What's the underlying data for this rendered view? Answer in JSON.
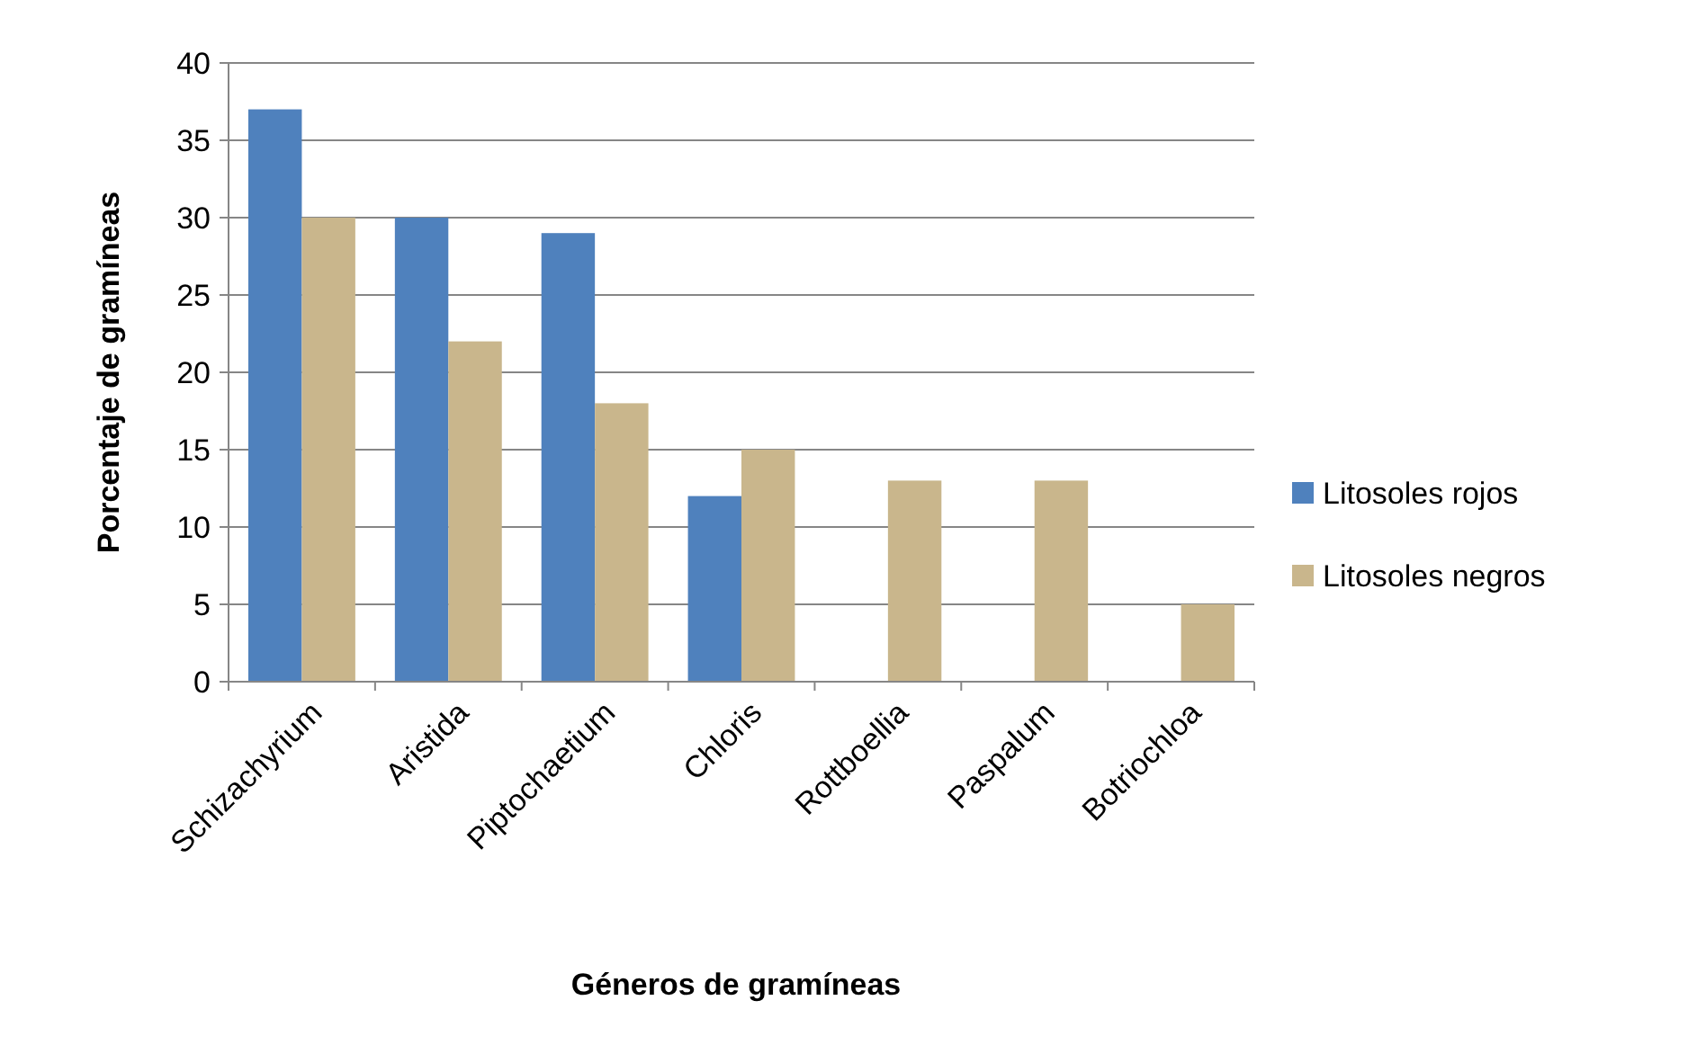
{
  "chart_data": {
    "type": "bar",
    "xlabel": "Géneros de gramíneas",
    "ylabel": "Porcentaje de gramíneas",
    "categories": [
      "Schizachyrium",
      "Aristida",
      "Piptochaetium",
      "Chloris",
      "Rottboellia",
      "Paspalum",
      "Botriochloa"
    ],
    "series": [
      {
        "name": "Litosoles rojos",
        "color": "#4f81bd",
        "values": [
          37,
          30,
          29,
          12,
          null,
          null,
          null
        ]
      },
      {
        "name": "Litosoles negros",
        "color": "#c9b68c",
        "values": [
          30,
          22,
          18,
          15,
          13,
          13,
          5
        ]
      }
    ],
    "ylim": [
      0,
      40
    ],
    "yticks": [
      0,
      5,
      10,
      15,
      20,
      25,
      30,
      35,
      40
    ],
    "grid": "y",
    "legend": "right"
  }
}
